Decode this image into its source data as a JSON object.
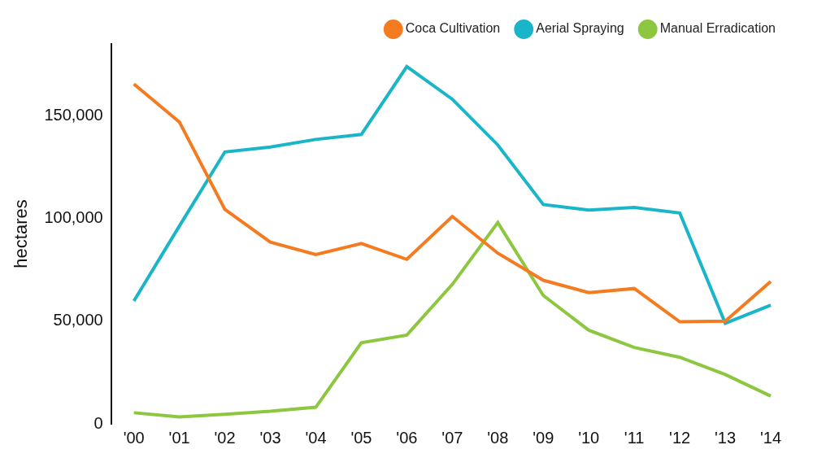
{
  "chart_data": {
    "type": "line",
    "y_label": "hectares",
    "categories": [
      "'00",
      "'01",
      "'02",
      "'03",
      "'04",
      "'05",
      "'06",
      "'07",
      "'08",
      "'09",
      "'10",
      "'11",
      "'12",
      "'13",
      "'14"
    ],
    "series": [
      {
        "name": "Coca Cultivation",
        "color": "#f47b20",
        "values": [
          165500,
          147000,
          104400,
          88500,
          82400,
          87800,
          80100,
          101000,
          83100,
          69900,
          63900,
          65900,
          49700,
          50000,
          69300
        ]
      },
      {
        "name": "Aerial Spraying",
        "color": "#1ab5c9",
        "values": [
          59800,
          96300,
          132400,
          134800,
          138500,
          140900,
          174000,
          158100,
          135800,
          106800,
          104100,
          105400,
          102700,
          49000,
          57800
        ]
      },
      {
        "name": "Manual Erradication",
        "color": "#8dc63f",
        "values": [
          5400,
          3400,
          4700,
          6100,
          8100,
          39500,
          43200,
          67900,
          98000,
          62500,
          45600,
          37200,
          32400,
          24000,
          13500
        ]
      }
    ],
    "ylim": [
      0,
      185000
    ],
    "yticks": [
      0,
      {
        "value": 50000,
        "label": "50,000"
      },
      {
        "value": 100000,
        "label": "100,000"
      },
      {
        "value": 150000,
        "label": "150,000"
      }
    ],
    "grid": false,
    "legend": "upper right",
    "marker": "circle"
  }
}
